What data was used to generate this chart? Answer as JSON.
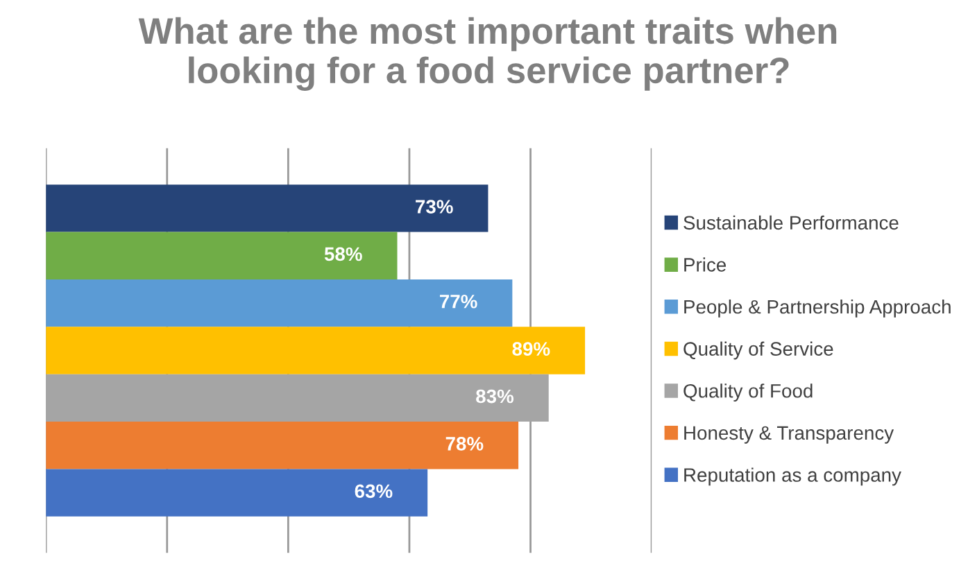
{
  "chart_data": {
    "type": "bar",
    "orientation": "horizontal",
    "title": "What are the most important traits when\nlooking for a food service partner?",
    "categories": [
      null
    ],
    "series": [
      {
        "name": "Sustainable Performance",
        "color": "#264478",
        "values": [
          73
        ],
        "value_labels": [
          "73%"
        ]
      },
      {
        "name": "Price",
        "color": "#70ad47",
        "values": [
          58
        ],
        "value_labels": [
          "58%"
        ]
      },
      {
        "name": "People & Partnership Approach",
        "color": "#5b9bd5",
        "values": [
          77
        ],
        "value_labels": [
          "77%"
        ]
      },
      {
        "name": "Quality of Service",
        "color": "#ffc000",
        "values": [
          89
        ],
        "value_labels": [
          "89%"
        ]
      },
      {
        "name": "Quality of Food",
        "color": "#a5a5a5",
        "values": [
          83
        ],
        "value_labels": [
          "83%"
        ]
      },
      {
        "name": "Honesty & Transparency",
        "color": "#ed7d31",
        "values": [
          78
        ],
        "value_labels": [
          "78%"
        ]
      },
      {
        "name": "Reputation as a company",
        "color": "#4472c4",
        "values": [
          63
        ],
        "value_labels": [
          "63%"
        ]
      }
    ],
    "xlim": [
      0,
      100
    ],
    "xticks": [
      {
        "value": 0,
        "label": null
      },
      {
        "value": 20,
        "label": null
      },
      {
        "value": 40,
        "label": null
      },
      {
        "value": 60,
        "label": null
      },
      {
        "value": 80,
        "label": null
      },
      {
        "value": 100,
        "label": null
      }
    ],
    "grid": "x",
    "legend": "right"
  }
}
